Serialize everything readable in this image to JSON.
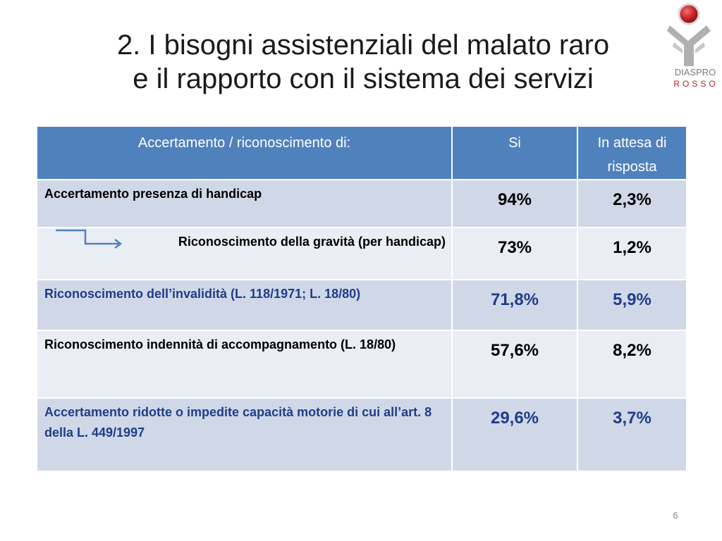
{
  "title": {
    "line1": "2. I bisogni assistenziali del malato raro",
    "line2": "e il rapporto con il sistema dei servizi"
  },
  "logo": {
    "line1": "DIASPRO",
    "line2": "ROSSO",
    "colors": {
      "red": "#b3201f",
      "gray": "#9a9a9a"
    }
  },
  "table": {
    "headers": [
      "Accertamento / riconoscimento di:",
      "Si",
      "In attesa di risposta"
    ],
    "rows": [
      {
        "label": "Accertamento presenza di handicap",
        "si": "94%",
        "attesa": "2,3%"
      },
      {
        "label": "Riconoscimento della gravità (per handicap)",
        "si": "73%",
        "attesa": "1,2%"
      },
      {
        "label": "Riconoscimento dell’invalidità (L. 118/1971; L. 18/80)",
        "si": "71,8%",
        "attesa": "5,9%"
      },
      {
        "label": "Riconoscimento indennità di accompagnamento (L. 18/80)",
        "si": "57,6%",
        "attesa": "8,2%"
      },
      {
        "label": "Accertamento ridotte o impedite capacità motorie di cui all’art. 8 della L. 449/1997",
        "si": "29,6%",
        "attesa": "3,7%"
      }
    ],
    "colors": {
      "header": "#4f81bd",
      "row_dark": "#d0d8e8",
      "row_light": "#e9edf4",
      "blue_text": "#1f3c88"
    }
  },
  "page_number": "6"
}
